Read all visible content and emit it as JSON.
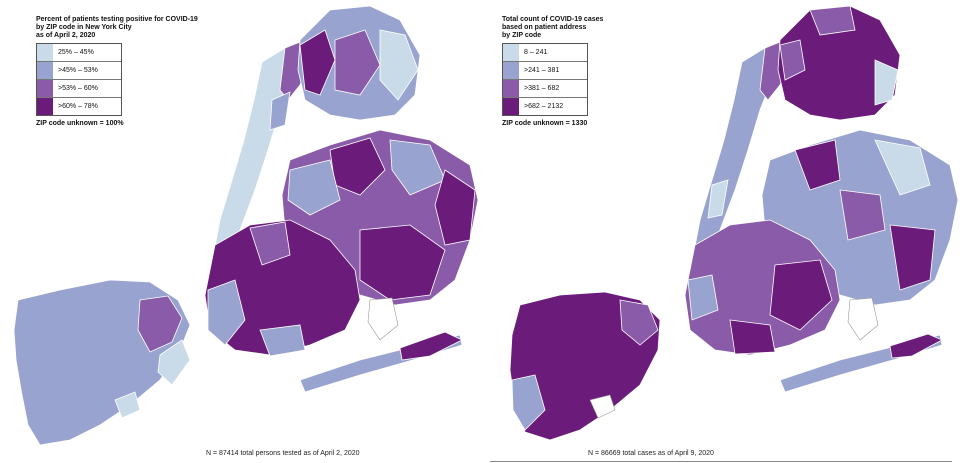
{
  "colors": {
    "class1": "#c9dbe9",
    "class2": "#98a4cf",
    "class3": "#8a5ba8",
    "class4": "#6b1c7a",
    "border": "#ffffff",
    "water": "#ffffff"
  },
  "left_map": {
    "title_lines": [
      "Percent of patients testing positive for COVID-19",
      "by ZIP code in New York City",
      "as of April 2, 2020"
    ],
    "legend": [
      {
        "label": "25% – 45%",
        "color_key": "class1"
      },
      {
        "label": ">45% – 53%",
        "color_key": "class2"
      },
      {
        "label": ">53% – 60%",
        "color_key": "class3"
      },
      {
        "label": ">60% – 78%",
        "color_key": "class4"
      }
    ],
    "unknown_note": "ZIP code unknown = 100%",
    "footnote": "N = 87414 total persons tested as of April 2, 2020"
  },
  "right_map": {
    "title_lines": [
      "Total count of COVID-19 cases",
      "based on patient address",
      "by ZIP code"
    ],
    "legend": [
      {
        "label": "8 – 241",
        "color_key": "class1"
      },
      {
        "label": ">241 – 381",
        "color_key": "class2"
      },
      {
        "label": ">381 – 682",
        "color_key": "class3"
      },
      {
        "label": ">682 – 2132",
        "color_key": "class4"
      }
    ],
    "unknown_note": "ZIP code unknown = 1330",
    "footnote": "N = 86669 total cases as of April 9, 2020"
  }
}
